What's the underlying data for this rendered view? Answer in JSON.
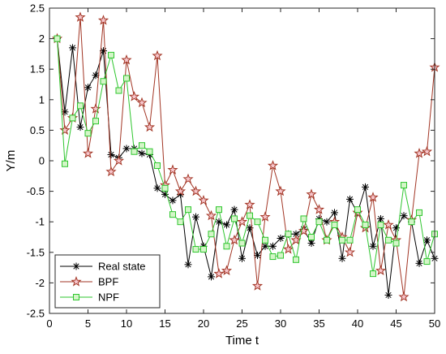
{
  "chart_data": {
    "type": "line",
    "xlabel": "Time t",
    "ylabel": "Y/m",
    "xlim": [
      0,
      50
    ],
    "ylim": [
      -2.5,
      2.5
    ],
    "xticks": [
      0,
      5,
      10,
      15,
      20,
      25,
      30,
      35,
      40,
      45,
      50
    ],
    "yticks": [
      -2.5,
      -2,
      -1.5,
      -1,
      -0.5,
      0,
      0.5,
      1,
      1.5,
      2,
      2.5
    ],
    "grid": false,
    "legend_position": "bottom-left",
    "x": [
      1,
      2,
      3,
      4,
      5,
      6,
      7,
      8,
      9,
      10,
      11,
      12,
      13,
      14,
      15,
      16,
      17,
      18,
      19,
      20,
      21,
      22,
      23,
      24,
      25,
      26,
      27,
      28,
      29,
      30,
      31,
      32,
      33,
      34,
      35,
      36,
      37,
      38,
      39,
      40,
      41,
      42,
      43,
      44,
      45,
      46,
      47,
      48,
      49,
      50
    ],
    "series": [
      {
        "name": "Real state",
        "color": "#000000",
        "marker": "asterisk",
        "values": [
          2.0,
          0.8,
          1.85,
          0.55,
          1.2,
          1.4,
          1.8,
          0.1,
          0.05,
          0.2,
          0.2,
          0.12,
          0.1,
          -0.45,
          -0.55,
          -0.65,
          -0.55,
          -1.7,
          -0.92,
          -1.4,
          -1.9,
          -1.0,
          -1.05,
          -0.8,
          -1.6,
          -1.1,
          -1.55,
          -1.4,
          -1.4,
          -1.27,
          -1.2,
          -1.2,
          -1.12,
          -1.35,
          -0.95,
          -1.0,
          -0.85,
          -1.6,
          -0.63,
          -0.85,
          -0.43,
          -1.4,
          -0.95,
          -2.2,
          -1.1,
          -0.9,
          -1.0,
          -1.68,
          -1.3,
          -1.6
        ]
      },
      {
        "name": "BPF",
        "color": "#a23524",
        "marker": "star",
        "values": [
          2.0,
          0.5,
          0.7,
          2.35,
          0.12,
          0.85,
          2.3,
          -0.18,
          0.0,
          1.65,
          1.05,
          0.95,
          0.55,
          1.72,
          -0.4,
          -0.15,
          -0.5,
          -0.3,
          -0.5,
          -0.65,
          -0.9,
          -1.85,
          -1.8,
          -1.3,
          -1.0,
          -0.72,
          -2.05,
          -0.92,
          -0.08,
          -0.5,
          -1.45,
          -1.3,
          -1.15,
          -0.55,
          -0.8,
          -1.3,
          -1.0,
          -1.25,
          -1.5,
          -0.85,
          -1.1,
          -0.6,
          -1.8,
          -1.05,
          -1.3,
          -2.23,
          -0.97,
          0.12,
          0.15,
          1.53
        ]
      },
      {
        "name": "NPF",
        "color": "#2ec62e",
        "marker": "square",
        "values": [
          2.0,
          -0.05,
          0.7,
          0.9,
          0.45,
          0.65,
          1.3,
          1.73,
          1.15,
          1.35,
          0.15,
          0.25,
          0.15,
          -0.08,
          -0.45,
          -0.88,
          -1.0,
          -0.8,
          -1.45,
          -1.45,
          -1.2,
          -0.8,
          -1.4,
          -0.95,
          -1.35,
          -0.9,
          -1.0,
          -1.3,
          -1.57,
          -1.55,
          -1.2,
          -1.62,
          -0.95,
          -1.25,
          -1.0,
          -1.3,
          -1.05,
          -1.3,
          -1.3,
          -0.8,
          -1.05,
          -1.85,
          -1.05,
          -1.3,
          -1.35,
          -0.4,
          -1.0,
          -0.85,
          -1.65,
          -1.2
        ]
      }
    ]
  }
}
